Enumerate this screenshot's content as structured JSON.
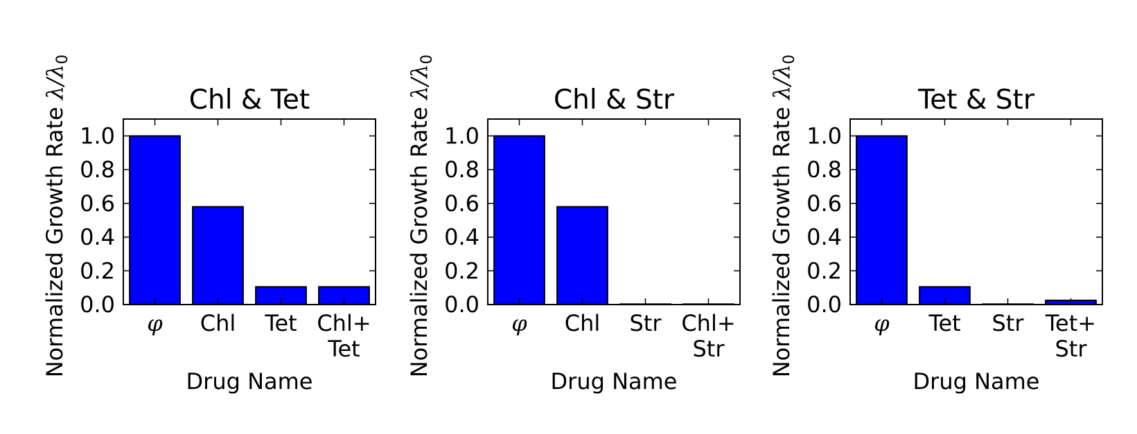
{
  "chart_data": [
    {
      "type": "bar",
      "title": "Chl & Tet",
      "xlabel": "Drug Name",
      "ylabel": "Normalized Growth Rate λ/λ0",
      "ylabel_text": "Normalized Growth Rate ",
      "ylabel_math": "λ/λ",
      "ylabel_sub": "0",
      "categories": [
        "φ",
        "Chl",
        "Tet",
        "Chl+\nTet"
      ],
      "values": [
        1.0,
        0.58,
        0.105,
        0.105
      ],
      "ylim": [
        0,
        1.1
      ],
      "yticks": [
        "0.0",
        "0.2",
        "0.4",
        "0.6",
        "0.8",
        "1.0"
      ],
      "bar_color": "#0000ff",
      "grid": false
    },
    {
      "type": "bar",
      "title": "Chl & Str",
      "xlabel": "Drug Name",
      "ylabel": "Normalized Growth Rate λ/λ0",
      "ylabel_text": "Normalized Growth Rate ",
      "ylabel_math": "λ/λ",
      "ylabel_sub": "0",
      "categories": [
        "φ",
        "Chl",
        "Str",
        "Chl+\nStr"
      ],
      "values": [
        1.0,
        0.58,
        0.003,
        0.003
      ],
      "ylim": [
        0,
        1.1
      ],
      "yticks": [
        "0.0",
        "0.2",
        "0.4",
        "0.6",
        "0.8",
        "1.0"
      ],
      "bar_color": "#0000ff",
      "grid": false
    },
    {
      "type": "bar",
      "title": "Tet & Str",
      "xlabel": "Drug Name",
      "ylabel": "Normalized Growth Rate λ/λ0",
      "ylabel_text": "Normalized Growth Rate ",
      "ylabel_math": "λ/λ",
      "ylabel_sub": "0",
      "categories": [
        "φ",
        "Tet",
        "Str",
        "Tet+\nStr"
      ],
      "values": [
        1.0,
        0.105,
        0.003,
        0.025
      ],
      "ylim": [
        0,
        1.1
      ],
      "yticks": [
        "0.0",
        "0.2",
        "0.4",
        "0.6",
        "0.8",
        "1.0"
      ],
      "bar_color": "#0000ff",
      "grid": false
    }
  ]
}
